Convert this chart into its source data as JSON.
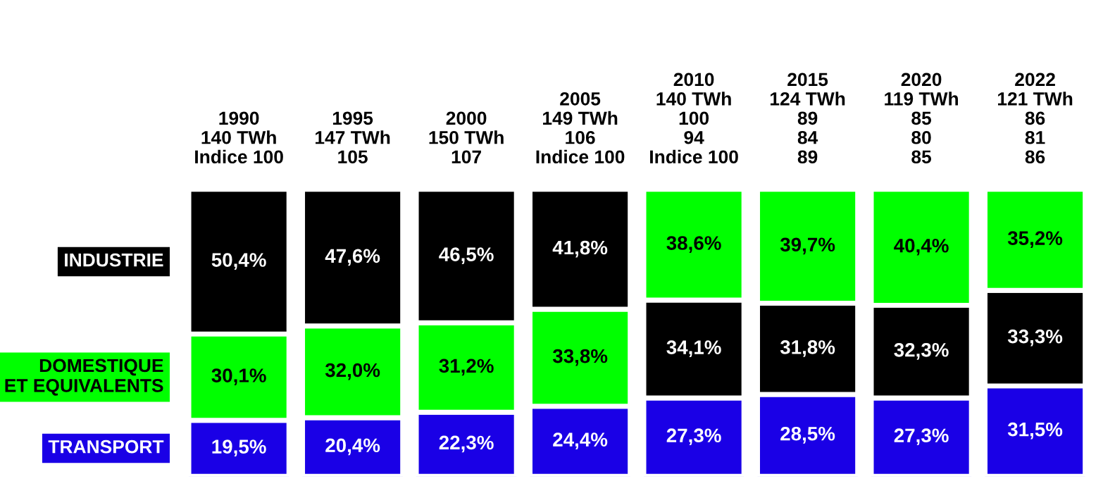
{
  "chart_data": {
    "type": "bar",
    "stacked": true,
    "legend": "left",
    "data_labels": true,
    "categories": [
      "1990\n140 TWh\nIndice 100",
      "1995\n147 TWh\n105",
      "2000\n150 TWh\n107",
      "2005\n149 TWh\n106\nIndice 100",
      "2010\n140 TWh\n100\n94\nIndice 100",
      "2015\n124 TWh\n89\n84\n89",
      "2020\n119 TWh\n85\n80\n85",
      "2022\n121 TWh\n86\n81\n86"
    ],
    "series": [
      {
        "name": "TRANSPORT",
        "color": "#1a00e6",
        "values": [
          19.5,
          20.4,
          22.3,
          24.4,
          27.3,
          28.5,
          27.3,
          31.5
        ],
        "value_labels": [
          "19,5%",
          "20,4%",
          "22,3%",
          "24,4%",
          "27,3%",
          "28,5%",
          "27,3%",
          "31,5%"
        ]
      },
      {
        "name": "DOMESTIQUE\nET EQUIVALENTS",
        "color": "#00ff00",
        "values": [
          30.1,
          32.0,
          31.2,
          33.8,
          null,
          null,
          null,
          null
        ],
        "value_labels": [
          "30,1%",
          "32,0%",
          "31,2%",
          "33,8%",
          null,
          null,
          null,
          null
        ]
      },
      {
        "name": "INDUSTRIE",
        "color": "#000000",
        "values": [
          50.4,
          47.6,
          46.5,
          41.8,
          34.1,
          31.8,
          32.3,
          33.3
        ],
        "value_labels": [
          "50,4%",
          "47,6%",
          "46,5%",
          "41,8%",
          "34,1%",
          "31,8%",
          "32,3%",
          "33,3%"
        ]
      },
      {
        "color": "#00ff00",
        "values": [
          null,
          null,
          null,
          null,
          38.6,
          39.7,
          40.4,
          35.2
        ],
        "value_labels": [
          null,
          null,
          null,
          null,
          "38,6%",
          "39,7%",
          "40,4%",
          "35,2%"
        ]
      }
    ]
  }
}
